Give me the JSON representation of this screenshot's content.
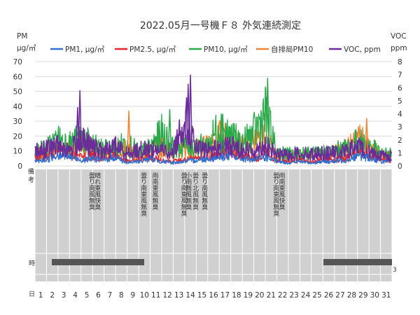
{
  "chart_data": {
    "type": "line",
    "title": "2022.05月一号機Ｆ８ 外気連続測定",
    "y_left_label_1": "PM",
    "y_left_label_2": "μg/㎥",
    "y_right_label_1": "VOC",
    "y_right_label_2": "ppm",
    "y_left_ticks": [
      "0",
      "10",
      "20",
      "30",
      "40",
      "50",
      "60",
      "70"
    ],
    "y_right_ticks": [
      "0",
      "1",
      "2",
      "3",
      "4",
      "5",
      "6",
      "7",
      "8"
    ],
    "ylim_left": [
      0,
      70
    ],
    "ylim_right": [
      0,
      8
    ],
    "x_days": [
      "1",
      "2",
      "3",
      "4",
      "5",
      "6",
      "7",
      "8",
      "9",
      "10",
      "11",
      "12",
      "13",
      "14",
      "15",
      "16",
      "17",
      "18",
      "19",
      "20",
      "21",
      "22",
      "23",
      "24",
      "25",
      "26",
      "27",
      "28",
      "29",
      "30",
      "31"
    ],
    "row_labels": {
      "remarks": "備\n考",
      "time": "時",
      "day": "日"
    },
    "series": [
      {
        "name": "PM1, μg/㎥",
        "color": "#2f6fd1",
        "axis": "left",
        "values": [
          3,
          4,
          8,
          6,
          4,
          5,
          4,
          6,
          2,
          3,
          5,
          3,
          2,
          3,
          4,
          5,
          6,
          7,
          5,
          4,
          6,
          3,
          2,
          3,
          2,
          3,
          3,
          4,
          7,
          6,
          3
        ]
      },
      {
        "name": "PM2.5, μg/㎥",
        "color": "#e8262a",
        "axis": "left",
        "values": [
          5,
          6,
          10,
          8,
          6,
          7,
          5,
          7,
          3,
          4,
          6,
          4,
          3,
          4,
          5,
          6,
          8,
          9,
          7,
          5,
          8,
          4,
          3,
          4,
          3,
          4,
          4,
          5,
          9,
          8,
          4
        ]
      },
      {
        "name": "PM10, μg/㎥",
        "color": "#2aa84a",
        "axis": "left",
        "values": [
          10,
          12,
          18,
          15,
          19,
          14,
          11,
          12,
          16,
          9,
          12,
          22,
          12,
          14,
          13,
          14,
          27,
          20,
          15,
          22,
          35,
          9,
          8,
          9,
          8,
          9,
          10,
          12,
          16,
          14,
          8
        ]
      },
      {
        "name": "自排局PM10",
        "color": "#ee8533",
        "axis": "left",
        "values": [
          7,
          9,
          13,
          11,
          16,
          12,
          9,
          10,
          13,
          8,
          10,
          14,
          10,
          12,
          11,
          13,
          20,
          17,
          13,
          16,
          18,
          7,
          6,
          8,
          7,
          8,
          9,
          12,
          22,
          12,
          7
        ]
      },
      {
        "name": "VOC, ppm",
        "color": "#6b2c9a",
        "axis": "right",
        "values": [
          1.1,
          1.3,
          1.6,
          1.2,
          2.0,
          1.4,
          1.1,
          1.5,
          1.0,
          1.2,
          1.3,
          1.2,
          1.1,
          3.8,
          1.3,
          1.2,
          1.4,
          1.5,
          1.3,
          1.1,
          1.6,
          0.9,
          0.8,
          1.0,
          0.9,
          1.0,
          1.0,
          1.1,
          1.5,
          1.2,
          0.8
        ]
      }
    ],
    "annotations": [
      {
        "day": 5,
        "text": "曇り南風無臭"
      },
      {
        "day": 5.5,
        "text": "晴れ東風快臭"
      },
      {
        "day": 9.5,
        "text": "曇り南東風無臭"
      },
      {
        "day": 10.5,
        "text": "雨南東風無臭"
      },
      {
        "day": 13,
        "text": "曇り南東風無臭"
      },
      {
        "day": 13.4,
        "text": "小雨無風無臭"
      },
      {
        "day": 14,
        "text": "曇り北風無臭"
      },
      {
        "day": 14.8,
        "text": "曇り南風無臭"
      },
      {
        "day": 21,
        "text": "曇り南東風無臭"
      },
      {
        "day": 21.5,
        "text": "雨南東風快臭"
      }
    ],
    "legend": "top"
  }
}
